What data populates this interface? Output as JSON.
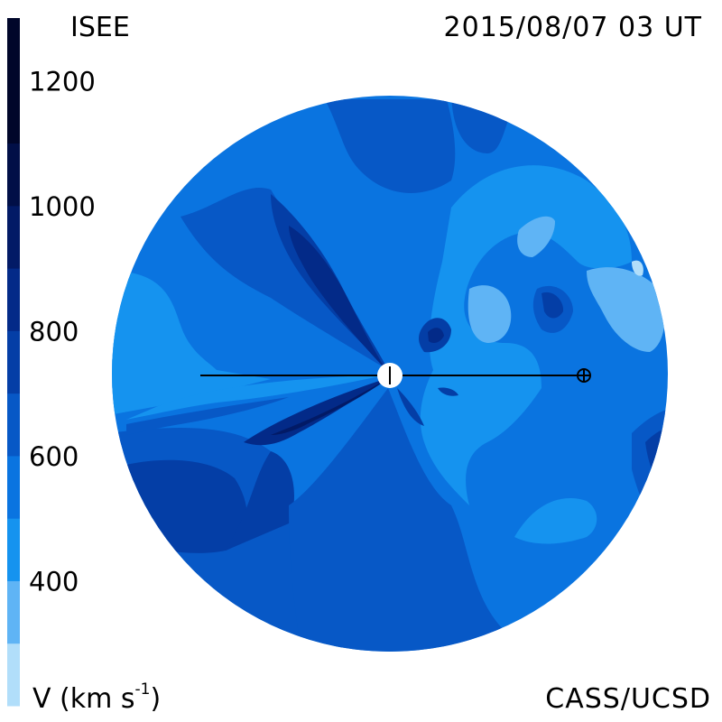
{
  "header": {
    "instrument": "ISEE",
    "timestamp": "2015/08/07 03 UT"
  },
  "footer": {
    "credit": "CASS/UCSD",
    "units_prefix": "V (km s",
    "units_exponent": "-1",
    "units_suffix": ")"
  },
  "colors": {
    "ring": "#5fb4f5"
  },
  "chart_data": {
    "type": "heatmap",
    "title": "ISEE",
    "timestamp": "2015/08/07 03 UT",
    "quantity_label": "V (km s-1)",
    "colorbar": {
      "tick_labels": [
        "1200",
        "1000",
        "800",
        "600",
        "400"
      ],
      "tick_values": [
        1200,
        1000,
        800,
        600,
        400
      ],
      "range": [
        200,
        1300
      ],
      "bands": [
        {
          "min": 200,
          "max": 300,
          "color": "#b1defa"
        },
        {
          "min": 300,
          "max": 400,
          "color": "#5fb4f5"
        },
        {
          "min": 400,
          "max": 500,
          "color": "#1593ef"
        },
        {
          "min": 500,
          "max": 600,
          "color": "#0a74e0"
        },
        {
          "min": 600,
          "max": 700,
          "color": "#0758c6"
        },
        {
          "min": 700,
          "max": 800,
          "color": "#043ea6"
        },
        {
          "min": 800,
          "max": 900,
          "color": "#032a88"
        },
        {
          "min": 900,
          "max": 1000,
          "color": "#021a66"
        },
        {
          "min": 1000,
          "max": 1100,
          "color": "#010f47"
        },
        {
          "min": 1100,
          "max": 1300,
          "color": "#00062a"
        }
      ]
    },
    "markers": [
      {
        "name": "Sun",
        "symbol": "sun"
      },
      {
        "name": "Earth",
        "symbol": "earth"
      }
    ]
  }
}
